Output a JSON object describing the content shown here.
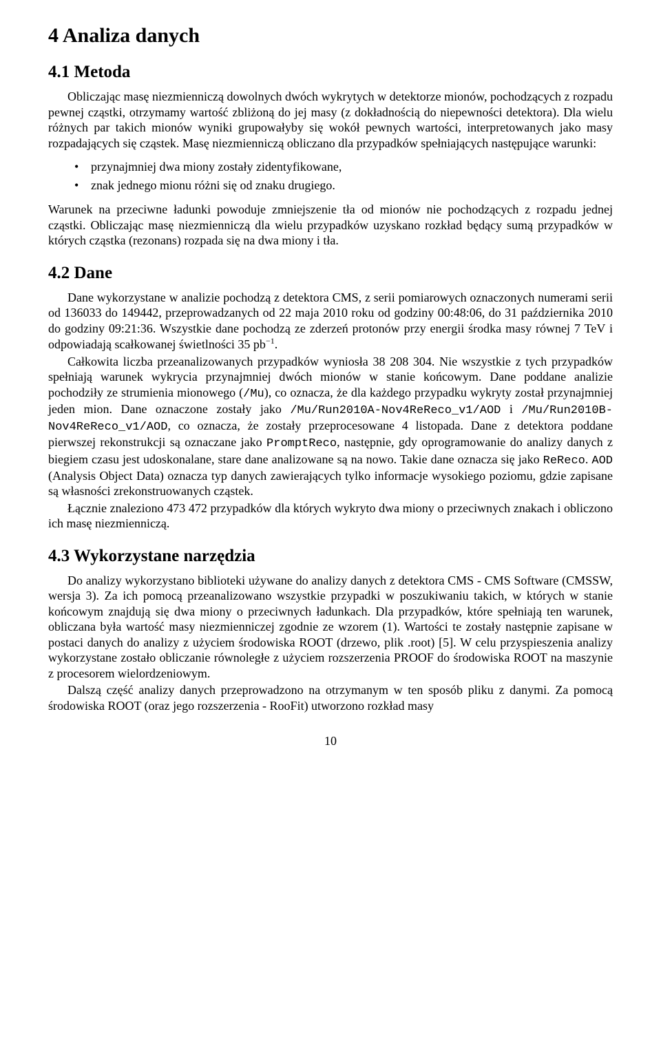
{
  "section4": {
    "heading": "4   Analiza danych",
    "sub41": {
      "heading": "4.1   Metoda",
      "para1": "Obliczając masę niezmienniczą dowolnych dwóch wykrytych w detektorze mionów, pochodzących z rozpadu pewnej cząstki, otrzymamy wartość zbliżoną do jej masy (z dokładnością do niepewności detektora). Dla wielu różnych par takich mionów wyniki grupowałyby się wokół pewnych wartości, interpretowanych jako masy rozpadających się cząstek. Masę niezmienniczą obliczano dla przypadków spełniających następujące warunki:",
      "bullet1": "przynajmniej dwa miony zostały zidentyfikowane,",
      "bullet2": "znak jednego mionu różni się od znaku drugiego.",
      "para2": "Warunek na przeciwne ładunki powoduje zmniejszenie tła od mionów nie pochodzących z rozpadu jednej cząstki. Obliczając masę niezmienniczą dla wielu przypadków uzyskano rozkład będący sumą przypadków w których cząstka (rezonans) rozpada się na dwa miony i tła."
    },
    "sub42": {
      "heading": "4.2   Dane",
      "para1_a": "Dane wykorzystane w analizie pochodzą z detektora CMS, z serii pomiarowych oznaczonych numerami serii od 136033 do 149442, przeprowadzanych od 22 maja 2010 roku od godziny 00:48:06, do 31 października 2010 do godziny 09:21:36. Wszystkie dane pochodzą ze zderzeń protonów przy energii środka masy równej 7 TeV i odpowiadają scałkowanej świetlności 35 pb",
      "para1_sup": "−1",
      "para1_b": ".",
      "para2_a": "Całkowita liczba przeanalizowanych przypadków wyniosła 38 208 304. Nie wszystkie z tych przypadków spełniają warunek wykrycia przynajmniej dwóch mionów w stanie końcowym. Dane poddane analizie pochodziły ze strumienia mionowego (",
      "para2_mono1": "/Mu",
      "para2_b": "), co oznacza, że dla każdego przypadku wykryty został przynajmniej jeden mion. Dane oznaczone zostały jako ",
      "para2_mono2": "/Mu/Run2010A-Nov4ReReco_v1/AOD",
      "para2_c": " i ",
      "para2_mono3": "/Mu/Run2010B-Nov4ReReco_v1/AOD",
      "para2_d": ", co oznacza, że zostały przeprocesowane 4 listopada. Dane z detektora poddane pierwszej rekonstrukcji są oznaczane jako ",
      "para2_mono4": "PromptReco",
      "para2_e": ", następnie, gdy oprogramowanie do analizy danych z biegiem czasu jest udoskonalane, stare dane analizowane są na nowo. Takie dane oznacza się jako ",
      "para2_mono5": "ReReco",
      "para2_f": ". ",
      "para2_mono6": "AOD",
      "para2_g": " (Analysis Object Data) oznacza typ danych zawierających tylko informacje wysokiego poziomu, gdzie zapisane są własności zrekonstruowanych cząstek.",
      "para3": "Łącznie znaleziono 473 472 przypadków dla których wykryto dwa miony o przeciwnych znakach i obliczono ich masę niezmienniczą."
    },
    "sub43": {
      "heading": "4.3   Wykorzystane narzędzia",
      "para1": "Do analizy wykorzystano biblioteki używane do analizy danych z detektora CMS - CMS Software (CMSSW, wersja 3). Za ich pomocą przeanalizowano wszystkie przypadki w poszukiwaniu takich, w których w stanie końcowym znajdują się dwa miony o przeciwnych ładunkach. Dla przypadków, które spełniają ten warunek, obliczana była wartość masy niezmienniczej zgodnie ze wzorem (1). Wartości te zostały następnie zapisane w postaci danych do analizy z użyciem środowiska ROOT (drzewo, plik .root) [5]. W celu przyspieszenia analizy wykorzystane zostało obliczanie równoległe z użyciem rozszerzenia PROOF do środowiska ROOT na maszynie z procesorem wielordzeniowym.",
      "para2": "Dalszą część analizy danych przeprowadzono na otrzymanym w ten sposób pliku z danymi. Za pomocą środowiska ROOT (oraz jego rozszerzenia - RooFit) utworzono rozkład masy"
    },
    "pageNumber": "10"
  }
}
